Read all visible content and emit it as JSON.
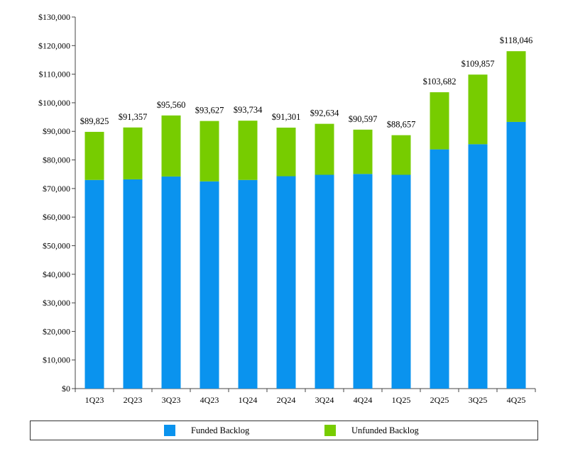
{
  "chart_data": {
    "type": "bar",
    "stacked": true,
    "categories": [
      "1Q23",
      "2Q23",
      "3Q23",
      "4Q23",
      "1Q24",
      "2Q24",
      "3Q24",
      "4Q24",
      "1Q25",
      "2Q25",
      "3Q25",
      "4Q25"
    ],
    "series": [
      {
        "name": "Funded Backlog",
        "color": "#0a93ee",
        "values": [
          73000,
          73200,
          74200,
          72500,
          73000,
          74300,
          74800,
          75100,
          74800,
          83700,
          85500,
          93300
        ]
      },
      {
        "name": "Unfunded Backlog",
        "color": "#77cc00",
        "values": [
          16825,
          18157,
          21360,
          21127,
          20734,
          17001,
          17834,
          15497,
          13857,
          19982,
          24357,
          24746
        ]
      }
    ],
    "totals": [
      89825,
      91357,
      95560,
      93627,
      93734,
      91301,
      92634,
      90597,
      88657,
      103682,
      109857,
      118046
    ],
    "total_labels": [
      "$89,825",
      "$91,357",
      "$95,560",
      "$93,627",
      "$93,734",
      "$91,301",
      "$92,634",
      "$90,597",
      "$88,657",
      "$103,682",
      "$109,857",
      "$118,046"
    ],
    "y_ticks": [
      0,
      10000,
      20000,
      30000,
      40000,
      50000,
      60000,
      70000,
      80000,
      90000,
      100000,
      110000,
      120000,
      130000
    ],
    "y_tick_labels": [
      "$0",
      "$10,000",
      "$20,000",
      "$30,000",
      "$40,000",
      "$50,000",
      "$60,000",
      "$70,000",
      "$80,000",
      "$90,000",
      "$100,000",
      "$110,000",
      "$120,000",
      "$130,000"
    ],
    "ylim": [
      0,
      130000
    ],
    "title": "",
    "xlabel": "",
    "ylabel": "",
    "grid": false,
    "legend_position": "bottom"
  }
}
